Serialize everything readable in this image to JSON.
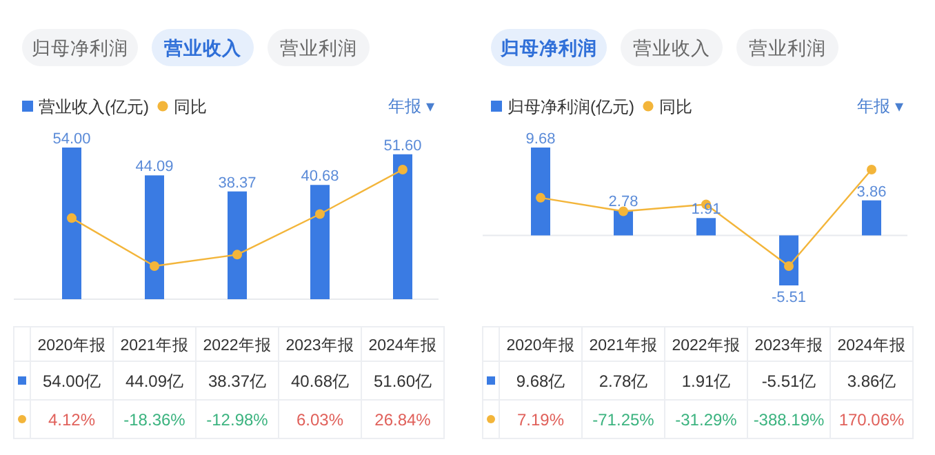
{
  "chart_data": [
    {
      "type": "bar",
      "categories": [
        "2020年报",
        "2021年报",
        "2022年报",
        "2023年报",
        "2024年报"
      ],
      "annotations": [
        "归母净利润",
        "营业收入",
        "营业利润",
        "年报 ▾",
        {
          "text": "54.00",
          "x": "2020年报",
          "y": 54.0
        },
        {
          "text": "44.09",
          "x": "2021年报",
          "y": 44.09
        },
        {
          "text": "38.37",
          "x": "2022年报",
          "y": 38.37
        },
        {
          "text": "40.68",
          "x": "2023年报",
          "y": 40.68
        },
        {
          "text": "51.60",
          "x": "2024年报",
          "y": 51.6
        }
      ],
      "series": [
        {
          "name": "营业收入(亿元)",
          "color": "#3a7be3",
          "values": [
            54.0,
            44.09,
            38.37,
            40.68,
            51.6
          ],
          "value_labels": [
            "54.00亿",
            "44.09亿",
            "38.37亿",
            "40.68亿",
            "51.60亿"
          ]
        },
        {
          "name": "同比",
          "type": "line",
          "axis": "y2",
          "color": "#f3b53a",
          "values": [
            4.12,
            -18.36,
            -12.98,
            6.03,
            26.84
          ],
          "value_labels": [
            "4.12%",
            "-18.36%",
            "-12.98%",
            "6.03%",
            "26.84%"
          ]
        }
      ],
      "legend": "top left",
      "marker": "circle"
    },
    {
      "type": "bar",
      "categories": [
        "2020年报",
        "2021年报",
        "2022年报",
        "2023年报",
        "2024年报"
      ],
      "annotations": [
        "归母净利润",
        "营业收入",
        "营业利润",
        "年报 ▾",
        {
          "text": "9.68",
          "x": "2020年报",
          "y": 9.68
        },
        {
          "text": "2.78",
          "x": "2021年报",
          "y": 2.78
        },
        {
          "text": "1.91",
          "x": "2022年报",
          "y": 1.91
        },
        {
          "text": "-5.51",
          "x": "2023年报",
          "y": -5.51
        },
        {
          "text": "3.86",
          "x": "2024年报",
          "y": 3.86
        }
      ],
      "series": [
        {
          "name": "归母净利润(亿元)",
          "color": "#3a7be3",
          "values": [
            9.68,
            2.78,
            1.91,
            -5.51,
            3.86
          ],
          "value_labels": [
            "9.68亿",
            "2.78亿",
            "1.91亿",
            "-5.51亿",
            "3.86亿"
          ]
        },
        {
          "name": "同比",
          "type": "line",
          "axis": "y2",
          "color": "#f3b53a",
          "values": [
            7.19,
            -71.25,
            -31.29,
            -388.19,
            170.06
          ],
          "value_labels": [
            "7.19%",
            "-71.25%",
            "-31.29%",
            "-388.19%",
            "170.06%"
          ]
        }
      ],
      "legend": "top left",
      "marker": "circle"
    }
  ]
}
